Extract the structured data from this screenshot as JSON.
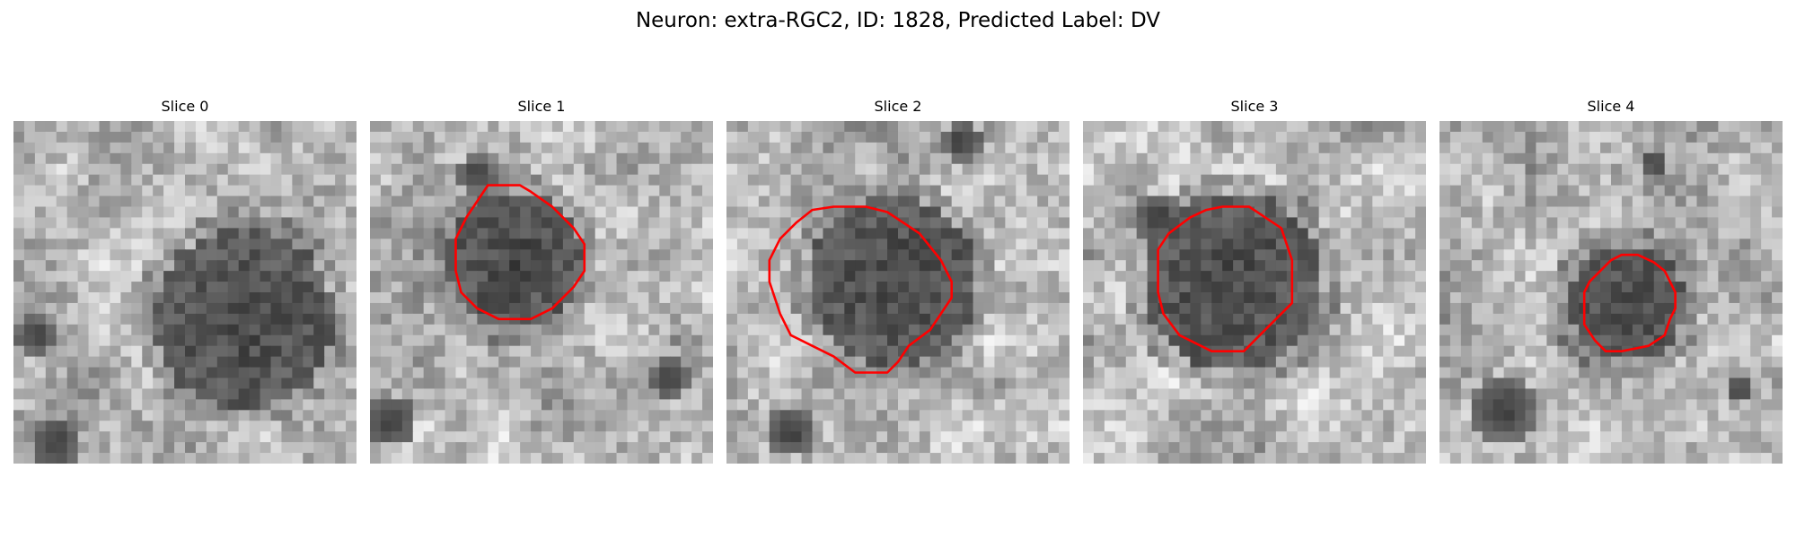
{
  "figure": {
    "title": "Neuron: extra-RGC2, ID: 1828, Predicted Label: DV"
  },
  "panels": [
    {
      "title": "Slice 0",
      "has_contour": false
    },
    {
      "title": "Slice 1",
      "has_contour": true
    },
    {
      "title": "Slice 2",
      "has_contour": true
    },
    {
      "title": "Slice 3",
      "has_contour": true
    },
    {
      "title": "Slice 4",
      "has_contour": true
    }
  ],
  "colors": {
    "contour": "#ff0000",
    "background": "#ffffff"
  }
}
